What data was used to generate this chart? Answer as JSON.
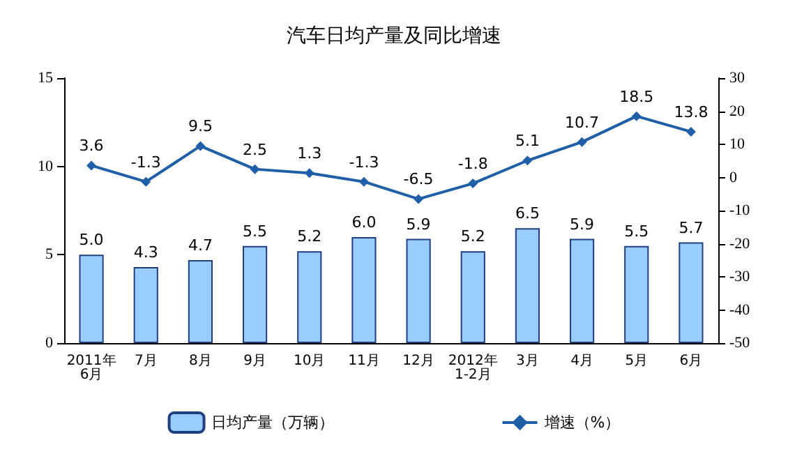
{
  "chart_data": {
    "type": "bar",
    "title": "汽车日均产量及同比增速",
    "categories": [
      "2011年\n6月",
      "7月",
      "8月",
      "9月",
      "10月",
      "11月",
      "12月",
      "2012年\n1-2月",
      "3月",
      "4月",
      "5月",
      "6月"
    ],
    "series": [
      {
        "name": "日均产量（万辆）",
        "color": "#99ccff",
        "values": [
          5.0,
          4.3,
          4.7,
          5.5,
          5.2,
          6.0,
          5.9,
          5.2,
          6.5,
          5.9,
          5.5,
          5.7
        ],
        "value_labels": [
          "5.0",
          "4.3",
          "4.7",
          "5.5",
          "5.2",
          "6.0",
          "5.9",
          "5.2",
          "6.5",
          "5.9",
          "5.5",
          "5.7"
        ]
      },
      {
        "name": "增速（%）",
        "type": "line",
        "axis": "y2",
        "color": "#1f5fa8",
        "values": [
          3.6,
          -1.3,
          9.5,
          2.5,
          1.3,
          -1.3,
          -6.5,
          -1.8,
          5.1,
          10.7,
          18.5,
          13.8
        ],
        "value_labels": [
          "3.6",
          "-1.3",
          "9.5",
          "2.5",
          "1.3",
          "-1.3",
          "-6.5",
          "-1.8",
          "5.1",
          "10.7",
          "18.5",
          "13.8"
        ]
      }
    ],
    "ylim": [
      0,
      15
    ],
    "yticks": [
      0,
      5,
      10,
      15
    ],
    "y2lim": [
      -50,
      30
    ],
    "y2ticks": [
      -50,
      -40,
      -30,
      -20,
      -10,
      0,
      10,
      20,
      30
    ],
    "grid": false,
    "legend": "bottom",
    "marker": "diamond"
  }
}
